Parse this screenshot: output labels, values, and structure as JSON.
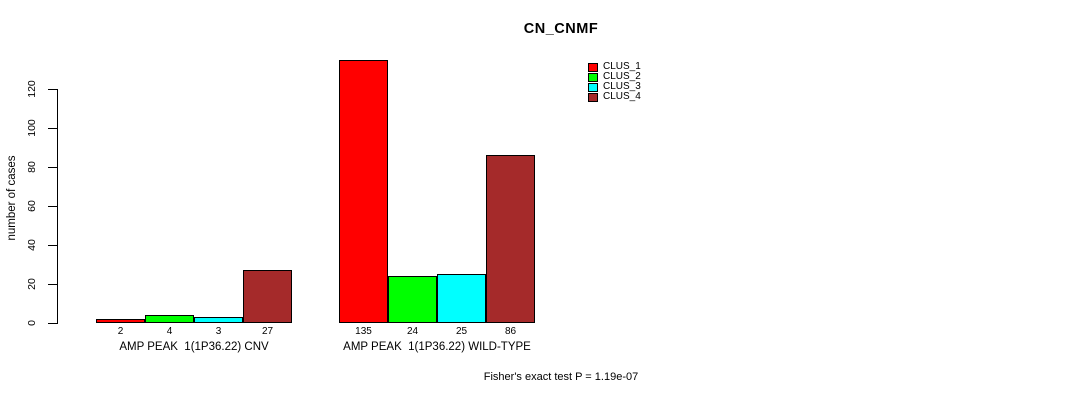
{
  "chart_data": {
    "type": "bar",
    "title": "CN_CNMF",
    "ylabel": "number of cases",
    "xlabel": "",
    "ylim": [
      0,
      120
    ],
    "yticks": [
      0,
      20,
      40,
      60,
      80,
      100,
      120
    ],
    "grid": false,
    "legend_position": "top-right",
    "series": [
      {
        "name": "CLUS_1",
        "color": "#FF0000"
      },
      {
        "name": "CLUS_2",
        "color": "#00FF00"
      },
      {
        "name": "CLUS_3",
        "color": "#00FFFF"
      },
      {
        "name": "CLUS_4",
        "color": "#A52A2A"
      }
    ],
    "groups": [
      {
        "label": "AMP PEAK  1(1P36.22) CNV",
        "values": [
          2,
          4,
          3,
          27
        ]
      },
      {
        "label": "AMP PEAK  1(1P36.22) WILD-TYPE",
        "values": [
          135,
          24,
          25,
          86
        ]
      }
    ],
    "footnote": "Fisher's exact test P = 1.19e-07"
  }
}
